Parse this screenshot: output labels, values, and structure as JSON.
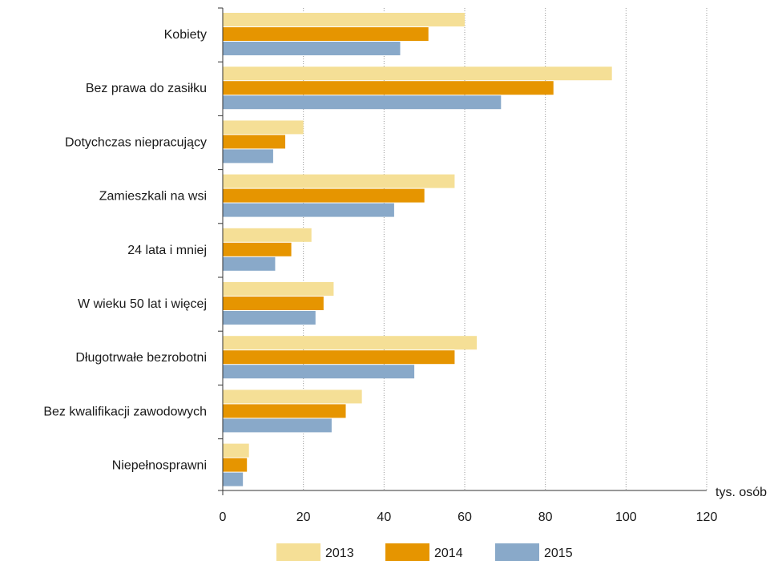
{
  "chart_data": {
    "type": "bar",
    "orientation": "horizontal",
    "categories": [
      "Kobiety",
      "Bez prawa do zasiłku",
      "Dotychczas niepracujący",
      "Zamieszkali na wsi",
      "24 lata i mniej",
      "W wieku 50 lat i więcej",
      "Długotrwałe bezrobotni",
      "Bez kwalifikacji zawodowych",
      "Niepełnosprawni"
    ],
    "series": [
      {
        "name": "2013",
        "color": "#f5df96",
        "values": [
          60.0,
          96.5,
          20.0,
          57.5,
          22.0,
          27.5,
          63.0,
          34.5,
          6.5
        ]
      },
      {
        "name": "2014",
        "color": "#e69500",
        "values": [
          51.0,
          82.0,
          15.5,
          50.0,
          17.0,
          25.0,
          57.5,
          30.5,
          6.0
        ]
      },
      {
        "name": "2015",
        "color": "#89a9c9",
        "values": [
          44.0,
          69.0,
          12.5,
          42.5,
          13.0,
          23.0,
          47.5,
          27.0,
          5.0
        ]
      }
    ],
    "x_unit": "tys. osób",
    "xlim": [
      0,
      120
    ],
    "x_ticks": [
      "0",
      "20",
      "40",
      "60",
      "80",
      "100",
      "120"
    ],
    "grid": "vertical dotted",
    "legend_position": "bottom"
  }
}
